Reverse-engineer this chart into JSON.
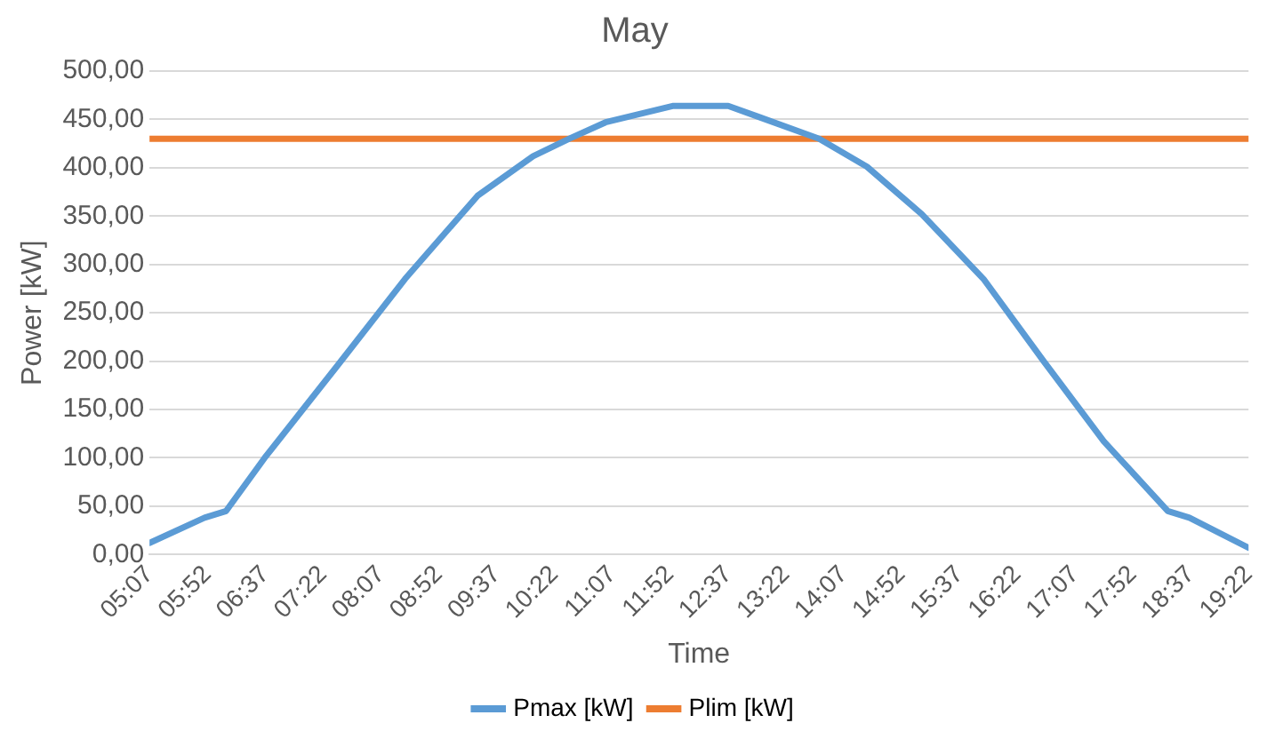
{
  "chart_data": {
    "type": "line",
    "title": "May",
    "xlabel": "Time",
    "ylabel": "Power [kW]",
    "xlim": [
      5.1167,
      19.3667
    ],
    "xticks": [
      {
        "value": 5.1167,
        "label": "05:07"
      },
      {
        "value": 5.8667,
        "label": "05:52"
      },
      {
        "value": 6.6167,
        "label": "06:37"
      },
      {
        "value": 7.3667,
        "label": "07:22"
      },
      {
        "value": 8.1167,
        "label": "08:07"
      },
      {
        "value": 8.8667,
        "label": "08:52"
      },
      {
        "value": 9.6167,
        "label": "09:37"
      },
      {
        "value": 10.3667,
        "label": "10:22"
      },
      {
        "value": 11.1167,
        "label": "11:07"
      },
      {
        "value": 11.8667,
        "label": "11:52"
      },
      {
        "value": 12.6167,
        "label": "12:37"
      },
      {
        "value": 13.3667,
        "label": "13:22"
      },
      {
        "value": 14.1167,
        "label": "14:07"
      },
      {
        "value": 14.8667,
        "label": "14:52"
      },
      {
        "value": 15.6167,
        "label": "15:37"
      },
      {
        "value": 16.3667,
        "label": "16:22"
      },
      {
        "value": 17.1167,
        "label": "17:07"
      },
      {
        "value": 17.8667,
        "label": "17:52"
      },
      {
        "value": 18.6167,
        "label": "18:37"
      },
      {
        "value": 19.3667,
        "label": "19:22"
      }
    ],
    "ylim": [
      0,
      500
    ],
    "yticks": [
      {
        "value": 0,
        "label": "0,00"
      },
      {
        "value": 50,
        "label": "50,00"
      },
      {
        "value": 100,
        "label": "100,00"
      },
      {
        "value": 150,
        "label": "150,00"
      },
      {
        "value": 200,
        "label": "200,00"
      },
      {
        "value": 250,
        "label": "250,00"
      },
      {
        "value": 300,
        "label": "300,00"
      },
      {
        "value": 350,
        "label": "350,00"
      },
      {
        "value": 400,
        "label": "400,00"
      },
      {
        "value": 450,
        "label": "450,00"
      },
      {
        "value": 500,
        "label": "500,00"
      }
    ],
    "grid": "y",
    "legend": "bottom",
    "marker": "none",
    "line_style": "solid",
    "series": [
      {
        "name": "Pmax [kW]",
        "color": "#5b9bd5",
        "x": [
          5.1167,
          5.83,
          6.11,
          6.61,
          7.55,
          8.43,
          9.37,
          10.09,
          10.56,
          11.03,
          11.91,
          12.62,
          13.0,
          13.8,
          14.42,
          15.13,
          15.93,
          16.71,
          17.49,
          18.32,
          18.6,
          19.3667
        ],
        "values": [
          12,
          38,
          45,
          100,
          195,
          285,
          371,
          412,
          430,
          447,
          464,
          464,
          453,
          430,
          401,
          352,
          285,
          200,
          117,
          45,
          38,
          7
        ]
      },
      {
        "name": "Plim [kW]",
        "color": "#ed7d31",
        "x": [
          5.1167,
          19.3667
        ],
        "values": [
          430,
          430
        ]
      }
    ]
  }
}
